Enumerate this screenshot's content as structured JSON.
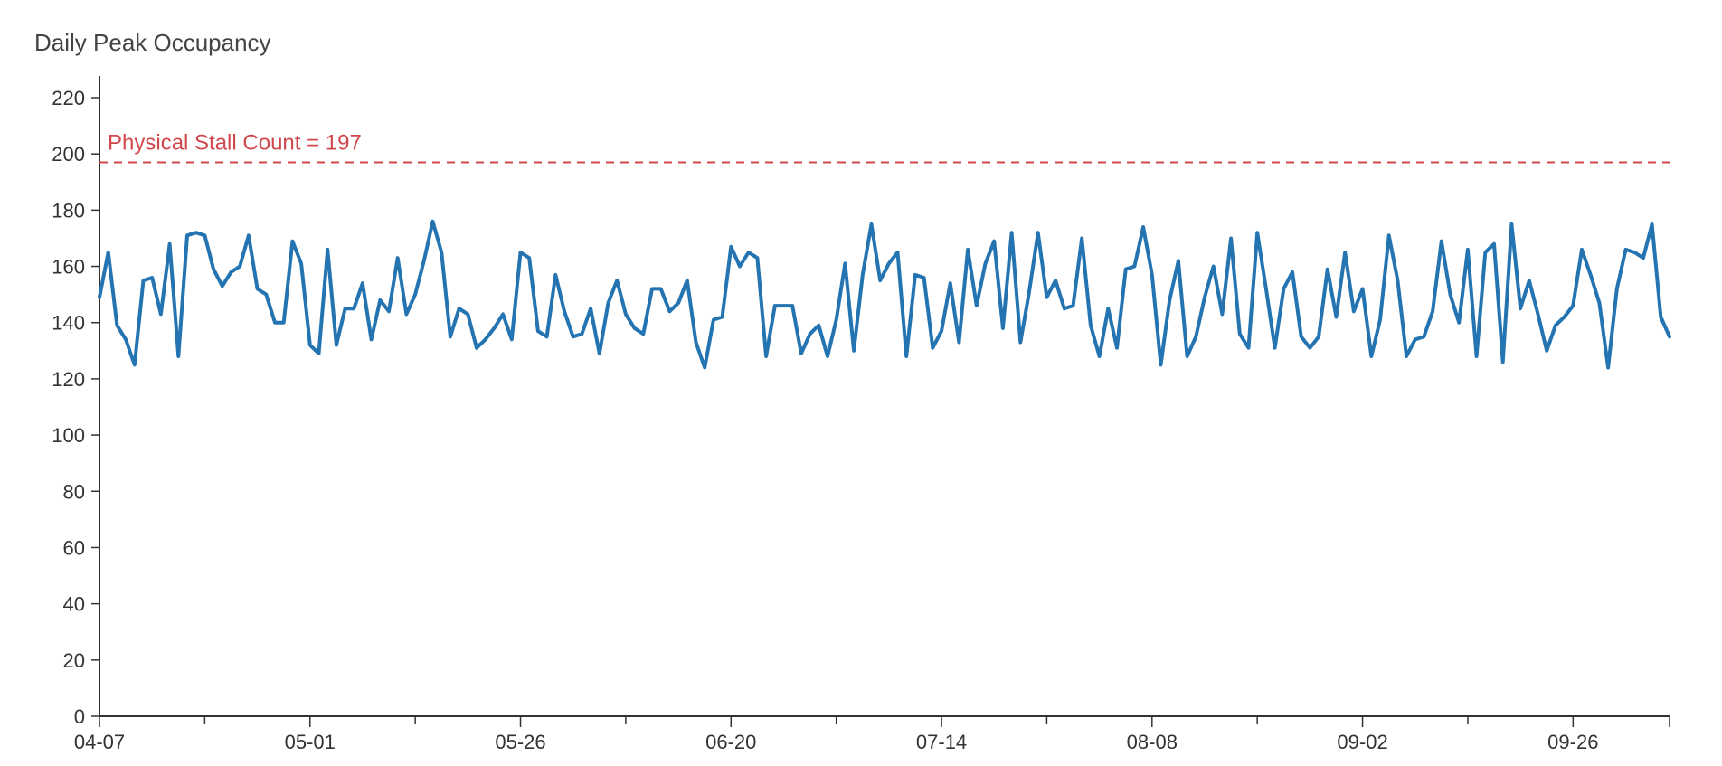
{
  "chart_data": {
    "type": "line",
    "title": "Daily Peak Occupancy",
    "xlabel": "",
    "ylabel": "",
    "ylim": [
      0,
      220
    ],
    "yticks": [
      0,
      20,
      40,
      60,
      80,
      100,
      120,
      140,
      160,
      180,
      200,
      220
    ],
    "x_start": "04-07",
    "x_end": "10-03",
    "xtick_labels": [
      "04-07",
      "05-01",
      "05-26",
      "06-20",
      "07-14",
      "08-08",
      "09-02",
      "09-26"
    ],
    "grid": false,
    "line_color": "#2574b2",
    "reference_line": {
      "value": 197,
      "label": "Physical Stall Count = 197",
      "color": "#d0484c",
      "style": "dashed"
    },
    "series": [
      {
        "values": [
          149,
          165,
          139,
          134,
          125,
          155,
          156,
          143,
          168,
          128,
          171,
          172,
          171,
          159,
          153,
          158,
          160,
          171,
          152,
          150,
          140,
          140,
          169,
          161,
          132,
          129,
          166,
          132,
          145,
          145,
          154,
          134,
          148,
          144,
          163,
          143,
          150,
          162,
          176,
          165,
          135,
          145,
          143,
          131,
          134,
          138,
          143,
          134,
          165,
          163,
          137,
          135,
          157,
          144,
          135,
          136,
          145,
          129,
          147,
          155,
          143,
          138,
          136,
          152,
          152,
          144,
          147,
          155,
          133,
          124,
          141,
          142,
          167,
          160,
          165,
          163,
          128,
          146,
          146,
          146,
          129,
          136,
          139,
          128,
          141,
          161,
          130,
          157,
          175,
          155,
          161,
          165,
          128,
          157,
          156,
          131,
          137,
          154,
          133,
          166,
          146,
          161,
          169,
          138,
          172,
          133,
          151,
          172,
          149,
          155,
          145,
          146,
          170,
          139,
          128,
          145,
          131,
          159,
          160,
          174,
          157,
          125,
          148,
          162,
          128,
          135,
          149,
          160,
          143,
          170,
          136,
          131,
          172,
          152,
          131,
          152,
          158,
          135,
          131,
          135,
          159,
          142,
          165,
          144,
          152,
          128,
          141,
          171,
          155,
          128,
          134,
          135,
          144,
          169,
          150,
          140,
          166,
          128,
          165,
          168,
          126,
          175,
          145,
          155,
          143,
          130,
          139,
          142,
          146,
          166,
          157,
          147,
          124,
          152,
          166,
          165,
          163,
          175,
          142,
          135
        ]
      }
    ]
  }
}
